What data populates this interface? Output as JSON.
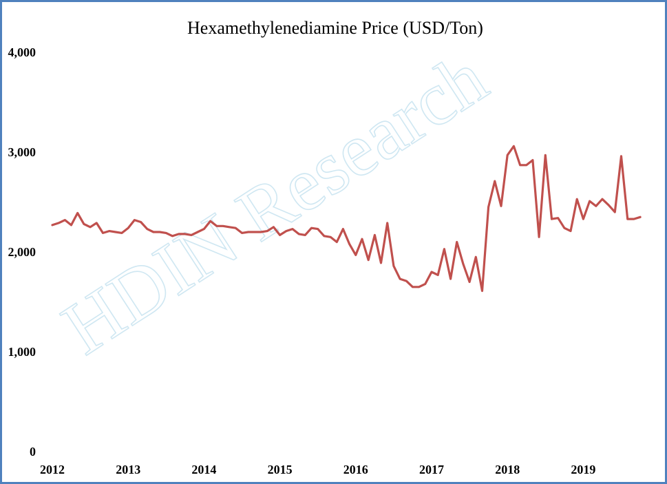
{
  "chart_data": {
    "type": "line",
    "title": "Hexamethylenediamine Price (USD/Ton)",
    "xlabel": "",
    "ylabel": "",
    "ylim": [
      0,
      4000
    ],
    "y_ticks": [
      "0",
      "1,000",
      "2,000",
      "3,000",
      "4,000"
    ],
    "y_tick_values": [
      0,
      1000,
      2000,
      3000,
      4000
    ],
    "x_ticks": [
      "2012",
      "2013",
      "2014",
      "2015",
      "2016",
      "2017",
      "2018",
      "2019"
    ],
    "x_start_year": 2012,
    "x_start_month": 1,
    "grid": false,
    "legend": "none",
    "watermark": "HDIN Research",
    "line_color": "#c0504d",
    "series": [
      {
        "values": [
          2270,
          2290,
          2320,
          2270,
          2390,
          2280,
          2250,
          2290,
          2190,
          2210,
          2200,
          2190,
          2240,
          2320,
          2300,
          2230,
          2200,
          2200,
          2190,
          2160,
          2180,
          2180,
          2170,
          2200,
          2230,
          2310,
          2260,
          2260,
          2250,
          2240,
          2190,
          2200,
          2200,
          2200,
          2210,
          2250,
          2170,
          2210,
          2230,
          2180,
          2170,
          2240,
          2230,
          2160,
          2150,
          2100,
          2230,
          2080,
          1970,
          2130,
          1920,
          2170,
          1890,
          2290,
          1860,
          1730,
          1710,
          1650,
          1650,
          1680,
          1800,
          1770,
          2030,
          1730,
          2100,
          1880,
          1700,
          1950,
          1610,
          2450,
          2710,
          2460,
          2970,
          3060,
          2870,
          2870,
          2920,
          2150,
          2970,
          2330,
          2340,
          2240,
          2210,
          2530,
          2330,
          2510,
          2460,
          2530,
          2470,
          2400,
          2960,
          2330,
          2330,
          2350
        ]
      }
    ]
  }
}
